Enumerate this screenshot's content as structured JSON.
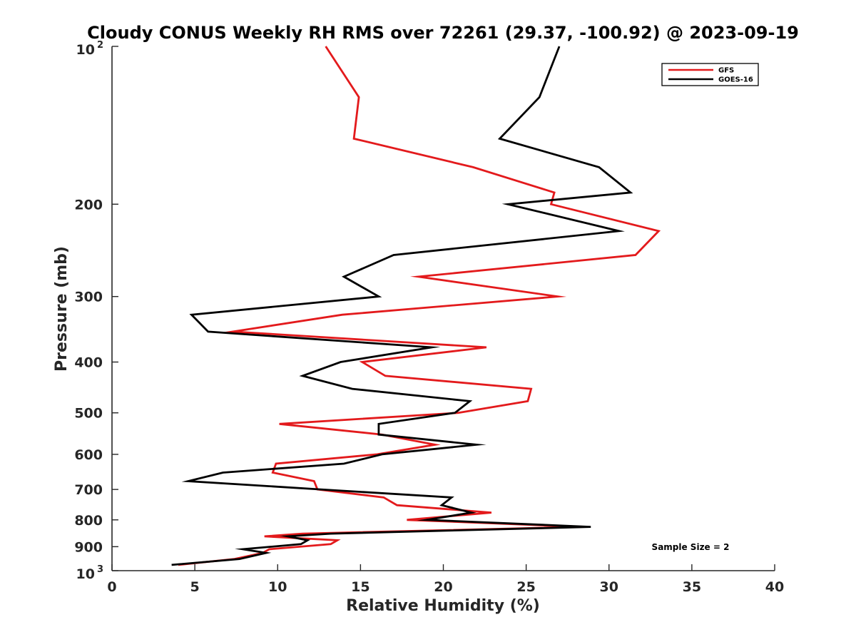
{
  "chart_data": {
    "type": "line",
    "title": "Cloudy CONUS Weekly RH RMS over 72261 (29.37, -100.92) @ 2023-09-19",
    "xlabel": "Relative Humidity (%)",
    "ylabel": "Pressure (mb)",
    "xlim": [
      0,
      40
    ],
    "ylim": [
      100,
      1000
    ],
    "y_scale": "log",
    "y_reversed": true,
    "grid": false,
    "legend_position": "top-right",
    "x_ticks": [
      0,
      5,
      10,
      15,
      20,
      25,
      30,
      35,
      40
    ],
    "x_tick_labels": [
      "0",
      "5",
      "10",
      "15",
      "20",
      "25",
      "30",
      "35",
      "40"
    ],
    "y_ticks": [
      {
        "value": 100,
        "label": "10",
        "sup": "2"
      },
      {
        "value": 200,
        "label": "200",
        "sup": ""
      },
      {
        "value": 300,
        "label": "300",
        "sup": ""
      },
      {
        "value": 400,
        "label": "400",
        "sup": ""
      },
      {
        "value": 500,
        "label": "500",
        "sup": ""
      },
      {
        "value": 600,
        "label": "600",
        "sup": ""
      },
      {
        "value": 700,
        "label": "700",
        "sup": ""
      },
      {
        "value": 800,
        "label": "800",
        "sup": ""
      },
      {
        "value": 900,
        "label": "900",
        "sup": ""
      },
      {
        "value": 1000,
        "label": "10",
        "sup": "3"
      }
    ],
    "series": [
      {
        "name": "GFS",
        "color": "#e31a1c",
        "points": [
          [
            12.9,
            100
          ],
          [
            14.9,
            125
          ],
          [
            14.6,
            150
          ],
          [
            21.8,
            170
          ],
          [
            26.7,
            190
          ],
          [
            26.5,
            200
          ],
          [
            33.0,
            225
          ],
          [
            31.6,
            250
          ],
          [
            18.5,
            275
          ],
          [
            26.9,
            300
          ],
          [
            13.9,
            325
          ],
          [
            7.3,
            350
          ],
          [
            22.6,
            375
          ],
          [
            15.1,
            400
          ],
          [
            16.5,
            425
          ],
          [
            25.3,
            450
          ],
          [
            25.1,
            475
          ],
          [
            20.9,
            500
          ],
          [
            10.1,
            525
          ],
          [
            16.3,
            550
          ],
          [
            19.5,
            575
          ],
          [
            16.0,
            600
          ],
          [
            9.9,
            625
          ],
          [
            9.7,
            650
          ],
          [
            12.2,
            675
          ],
          [
            12.4,
            700
          ],
          [
            16.4,
            725
          ],
          [
            17.2,
            750
          ],
          [
            22.9,
            775
          ],
          [
            17.8,
            800
          ],
          [
            28.4,
            825
          ],
          [
            11.5,
            850
          ],
          [
            9.2,
            860
          ],
          [
            13.6,
            875
          ],
          [
            13.2,
            890
          ],
          [
            9.5,
            910
          ],
          [
            9.1,
            925
          ],
          [
            7.4,
            950
          ],
          [
            4.0,
            975
          ]
        ]
      },
      {
        "name": "GOES-16",
        "color": "#000000",
        "points": [
          [
            27.0,
            100
          ],
          [
            25.8,
            125
          ],
          [
            23.4,
            150
          ],
          [
            29.4,
            170
          ],
          [
            31.3,
            190
          ],
          [
            23.9,
            200
          ],
          [
            30.6,
            225
          ],
          [
            17.0,
            250
          ],
          [
            14.0,
            275
          ],
          [
            16.1,
            300
          ],
          [
            4.8,
            325
          ],
          [
            5.8,
            350
          ],
          [
            19.3,
            375
          ],
          [
            13.8,
            400
          ],
          [
            11.5,
            425
          ],
          [
            14.5,
            450
          ],
          [
            21.6,
            475
          ],
          [
            20.7,
            500
          ],
          [
            16.1,
            525
          ],
          [
            16.1,
            550
          ],
          [
            22.0,
            575
          ],
          [
            16.3,
            600
          ],
          [
            14.0,
            625
          ],
          [
            6.7,
            650
          ],
          [
            4.6,
            675
          ],
          [
            12.6,
            700
          ],
          [
            20.5,
            725
          ],
          [
            19.9,
            750
          ],
          [
            21.7,
            775
          ],
          [
            19.0,
            800
          ],
          [
            28.9,
            825
          ],
          [
            13.2,
            850
          ],
          [
            10.6,
            860
          ],
          [
            11.8,
            875
          ],
          [
            11.4,
            890
          ],
          [
            7.9,
            910
          ],
          [
            9.3,
            925
          ],
          [
            7.7,
            950
          ],
          [
            3.6,
            975
          ]
        ]
      }
    ],
    "annotation": "Sample Size = 2"
  }
}
